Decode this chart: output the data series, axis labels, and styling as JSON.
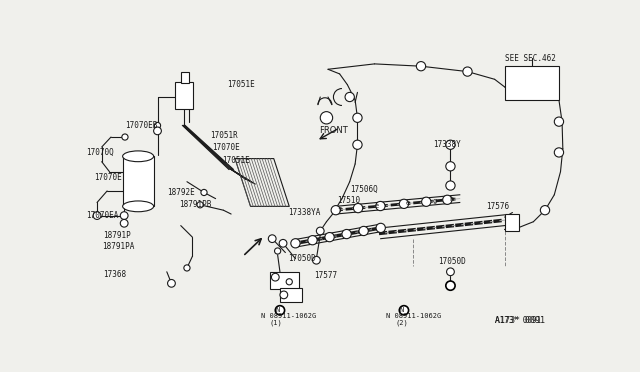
{
  "bg": "#f0f0ec",
  "lc": "#1a1a1a",
  "lw": 0.8,
  "labels_left": [
    [
      190,
      52,
      "17051E"
    ],
    [
      58,
      105,
      "17070EB"
    ],
    [
      8,
      140,
      "17070Q"
    ],
    [
      18,
      172,
      "17070E"
    ],
    [
      112,
      192,
      "18792E"
    ],
    [
      168,
      118,
      "17051R"
    ],
    [
      170,
      133,
      "17070E"
    ],
    [
      183,
      150,
      "17051E"
    ],
    [
      128,
      208,
      "18791PB"
    ],
    [
      8,
      222,
      "17070EA"
    ],
    [
      30,
      248,
      "18791P"
    ],
    [
      28,
      262,
      "18791PA"
    ],
    [
      30,
      298,
      "17368"
    ]
  ],
  "labels_right": [
    [
      268,
      218,
      "17338YA"
    ],
    [
      268,
      278,
      "17050D"
    ],
    [
      302,
      300,
      "17577"
    ],
    [
      348,
      188,
      "17506Q"
    ],
    [
      332,
      203,
      "17510"
    ],
    [
      524,
      210,
      "17576"
    ],
    [
      455,
      130,
      "17338Y"
    ],
    [
      462,
      282,
      "17050D"
    ],
    [
      548,
      18,
      "SEE SEC.462"
    ],
    [
      535,
      358,
      "A173* 0091"
    ]
  ]
}
